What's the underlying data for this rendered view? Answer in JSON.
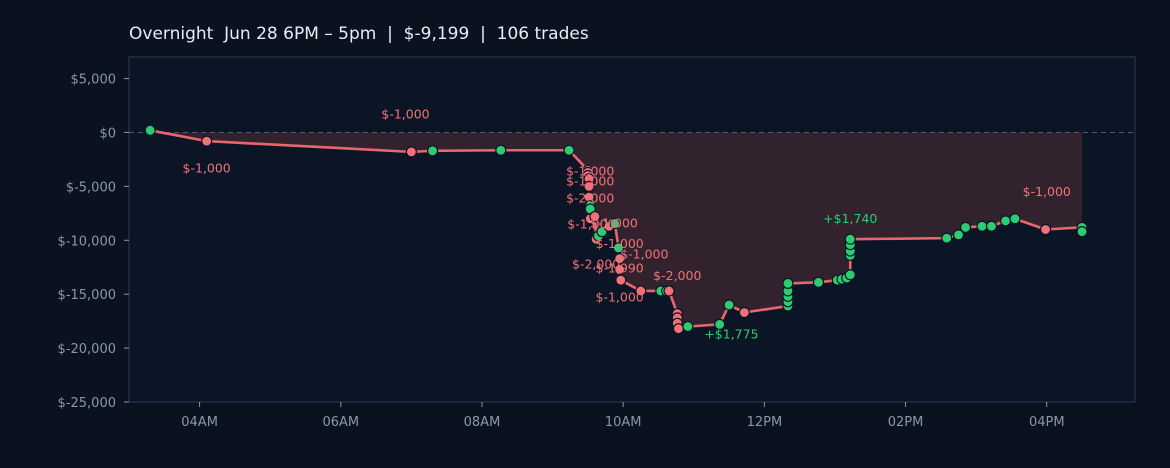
{
  "chart_data": {
    "type": "line",
    "title": "Overnight  Jun 28 6PM – 5pm  |  $-9,199  |  106 trades",
    "xlabel": "",
    "ylabel": "",
    "ylim": [
      -25000,
      7000
    ],
    "yticks": [
      5000,
      0,
      -5000,
      -10000,
      -15000,
      -20000,
      -25000
    ],
    "ytick_labels": [
      "$5,000",
      "$0",
      "$-5,000",
      "$-10,000",
      "$-15,000",
      "$-20,000",
      "$-25,000"
    ],
    "xlim": [
      "03:00",
      "17:15"
    ],
    "xticks": [
      "04:00",
      "06:00",
      "08:00",
      "10:00",
      "12:00",
      "14:00",
      "16:00"
    ],
    "xtick_labels": [
      "04AM",
      "06AM",
      "08AM",
      "10AM",
      "12PM",
      "02PM",
      "04PM"
    ],
    "grid": false,
    "zero_line": true,
    "colors": {
      "background": "#0a1220",
      "plot_background": "#0b1526",
      "line": "#e8666e",
      "win": "#2ecc71",
      "loss": "#f07178",
      "fill": "#3a2430"
    },
    "series": [
      {
        "points": [
          {
            "t": "03:18",
            "y": 200,
            "r": "win"
          },
          {
            "t": "04:06",
            "y": -800,
            "r": "loss"
          },
          {
            "t": "07:00",
            "y": -1800,
            "r": "loss"
          },
          {
            "t": "07:18",
            "y": -1700,
            "r": "win"
          },
          {
            "t": "08:16",
            "y": -1650,
            "r": "win"
          },
          {
            "t": "09:14",
            "y": -1650,
            "r": "win"
          },
          {
            "t": "09:30",
            "y": -3500,
            "r": "loss"
          },
          {
            "t": "09:30",
            "y": -3700,
            "r": "loss"
          },
          {
            "t": "09:30",
            "y": -4000,
            "r": "loss"
          },
          {
            "t": "09:31",
            "y": -4300,
            "r": "loss"
          },
          {
            "t": "09:31",
            "y": -5000,
            "r": "loss"
          },
          {
            "t": "09:31",
            "y": -6000,
            "r": "loss"
          },
          {
            "t": "09:32",
            "y": -6800,
            "r": "win"
          },
          {
            "t": "09:32",
            "y": -7100,
            "r": "win"
          },
          {
            "t": "09:32",
            "y": -8000,
            "r": "loss"
          },
          {
            "t": "09:36",
            "y": -7800,
            "r": "loss"
          },
          {
            "t": "09:37",
            "y": -9900,
            "r": "loss"
          },
          {
            "t": "09:39",
            "y": -9600,
            "r": "win"
          },
          {
            "t": "09:42",
            "y": -9200,
            "r": "win"
          },
          {
            "t": "09:48",
            "y": -8700,
            "r": "loss"
          },
          {
            "t": "09:53",
            "y": -8450,
            "r": "win"
          },
          {
            "t": "09:56",
            "y": -10700,
            "r": "win"
          },
          {
            "t": "09:57",
            "y": -11700,
            "r": "loss"
          },
          {
            "t": "09:57",
            "y": -12700,
            "r": "loss"
          },
          {
            "t": "09:58",
            "y": -13700,
            "r": "loss"
          },
          {
            "t": "10:15",
            "y": -14700,
            "r": "loss"
          },
          {
            "t": "10:32",
            "y": -14700,
            "r": "win"
          },
          {
            "t": "10:37",
            "y": -14700,
            "r": "win"
          },
          {
            "t": "10:39",
            "y": -14700,
            "r": "loss"
          },
          {
            "t": "10:46",
            "y": -16800,
            "r": "loss"
          },
          {
            "t": "10:46",
            "y": -17200,
            "r": "loss"
          },
          {
            "t": "10:46",
            "y": -17700,
            "r": "loss"
          },
          {
            "t": "10:47",
            "y": -18200,
            "r": "loss"
          },
          {
            "t": "10:55",
            "y": -18000,
            "r": "win"
          },
          {
            "t": "11:22",
            "y": -17800,
            "r": "win"
          },
          {
            "t": "11:30",
            "y": -16000,
            "r": "win"
          },
          {
            "t": "11:43",
            "y": -16700,
            "r": "loss"
          },
          {
            "t": "12:20",
            "y": -16100,
            "r": "win"
          },
          {
            "t": "12:20",
            "y": -15700,
            "r": "win"
          },
          {
            "t": "12:20",
            "y": -15200,
            "r": "win"
          },
          {
            "t": "12:20",
            "y": -14700,
            "r": "win"
          },
          {
            "t": "12:20",
            "y": -14000,
            "r": "win"
          },
          {
            "t": "12:46",
            "y": -13900,
            "r": "win"
          },
          {
            "t": "13:02",
            "y": -13700,
            "r": "win"
          },
          {
            "t": "13:06",
            "y": -13600,
            "r": "win"
          },
          {
            "t": "13:10",
            "y": -13500,
            "r": "win"
          },
          {
            "t": "13:13",
            "y": -13200,
            "r": "win"
          },
          {
            "t": "13:13",
            "y": -11400,
            "r": "win"
          },
          {
            "t": "13:13",
            "y": -11000,
            "r": "win"
          },
          {
            "t": "13:13",
            "y": -10400,
            "r": "win"
          },
          {
            "t": "13:13",
            "y": -9900,
            "r": "win"
          },
          {
            "t": "14:35",
            "y": -9800,
            "r": "win"
          },
          {
            "t": "14:45",
            "y": -9500,
            "r": "win"
          },
          {
            "t": "14:51",
            "y": -8800,
            "r": "win"
          },
          {
            "t": "15:05",
            "y": -8700,
            "r": "win"
          },
          {
            "t": "15:13",
            "y": -8700,
            "r": "win"
          },
          {
            "t": "15:25",
            "y": -8200,
            "r": "win"
          },
          {
            "t": "15:33",
            "y": -8000,
            "r": "win"
          },
          {
            "t": "15:59",
            "y": -9000,
            "r": "loss"
          },
          {
            "t": "16:30",
            "y": -8800,
            "r": "win"
          },
          {
            "t": "16:30",
            "y": -9200,
            "r": "win"
          }
        ]
      }
    ],
    "annotations": [
      {
        "text": "$-1,000",
        "t": "04:06",
        "y": -3700,
        "r": "loss"
      },
      {
        "text": "$-1,000",
        "t": "06:55",
        "y": 1300,
        "r": "loss"
      },
      {
        "text": "$-1,000",
        "t": "09:32",
        "y": -4000,
        "r": "loss"
      },
      {
        "text": "$-1,000",
        "t": "09:32",
        "y": -4900,
        "r": "loss"
      },
      {
        "text": "$-2,000",
        "t": "09:32",
        "y": -6500,
        "r": "loss"
      },
      {
        "text": "$-1,000",
        "t": "09:33",
        "y": -8900,
        "r": "loss"
      },
      {
        "text": "$-1,000",
        "t": "09:52",
        "y": -8800,
        "r": "loss"
      },
      {
        "text": "$-1,000",
        "t": "09:57",
        "y": -10700,
        "r": "loss"
      },
      {
        "text": "$-1,000",
        "t": "10:18",
        "y": -11700,
        "r": "loss"
      },
      {
        "text": "$-2,000",
        "t": "09:37",
        "y": -12600,
        "r": "loss"
      },
      {
        "text": "$-1,990",
        "t": "09:57",
        "y": -13000,
        "r": "loss"
      },
      {
        "text": "$-2,000",
        "t": "10:46",
        "y": -13700,
        "r": "loss"
      },
      {
        "text": "$-1,000",
        "t": "09:57",
        "y": -15700,
        "r": "loss"
      },
      {
        "text": "+$1,775",
        "t": "11:32",
        "y": -19100,
        "r": "win"
      },
      {
        "text": "+$1,740",
        "t": "13:13",
        "y": -8400,
        "r": "win"
      },
      {
        "text": "$-1,000",
        "t": "16:00",
        "y": -5900,
        "r": "loss"
      }
    ]
  }
}
